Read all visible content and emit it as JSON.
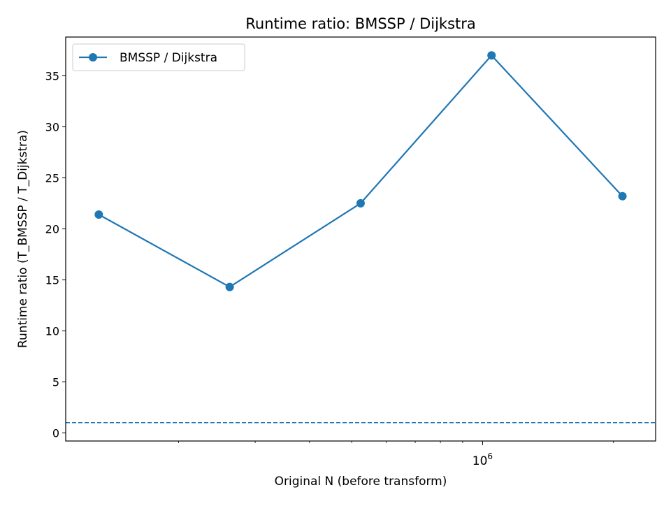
{
  "chart_data": {
    "type": "line",
    "title": "Runtime ratio: BMSSP / Dijkstra",
    "xlabel": "Original N (before transform)",
    "ylabel": "Runtime ratio (T_BMSSP / T_Dijkstra)",
    "x_scale": "log",
    "x_tick_label": {
      "base": "10",
      "exponent": "6",
      "value": 1000000
    },
    "x": [
      131072,
      262144,
      524288,
      1048576,
      2097152
    ],
    "xlim": [
      110000,
      2500000
    ],
    "ylim": [
      -0.8,
      38.8
    ],
    "y_ticks": [
      0,
      5,
      10,
      15,
      20,
      25,
      30,
      35
    ],
    "grid": false,
    "legend_position": "top-left",
    "series": [
      {
        "name": "BMSSP / Dijkstra",
        "values": [
          21.4,
          14.3,
          22.5,
          37.0,
          23.2
        ],
        "color": "#1f77b4",
        "marker": "circle"
      }
    ],
    "reference_line": {
      "y": 1,
      "style": "dashed",
      "color": "#1f77b4"
    }
  }
}
